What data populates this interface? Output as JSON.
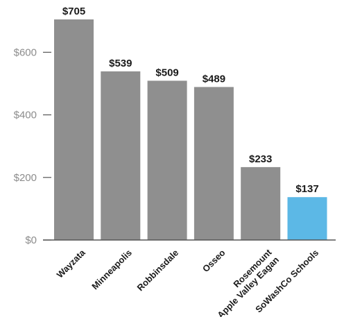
{
  "chart_data": {
    "type": "bar",
    "title": "",
    "xlabel": "",
    "ylabel": "",
    "categories": [
      [
        "Wayzata"
      ],
      [
        "Minneapolis"
      ],
      [
        "Robbinsdale"
      ],
      [
        "Osseo"
      ],
      [
        "Rosemount",
        "Apple Valley Eagan"
      ],
      [
        "SoWashCo Schools"
      ]
    ],
    "values": [
      705,
      539,
      509,
      489,
      233,
      137
    ],
    "value_labels": [
      "$705",
      "$539",
      "$509",
      "$489",
      "$233",
      "$137"
    ],
    "ylim": [
      0,
      705
    ],
    "yticks": [
      0,
      200,
      400,
      600
    ],
    "ytick_labels": [
      "$0",
      "$200",
      "$400",
      "$600"
    ],
    "grid": false,
    "colors": {
      "default_bar": "#8f8f8f",
      "highlight_bar": "#5cb8e6",
      "highlight_index": 5,
      "axis": "#555555",
      "tick_text": "#8c8c8c",
      "label_text": "#1a1a1a"
    }
  }
}
